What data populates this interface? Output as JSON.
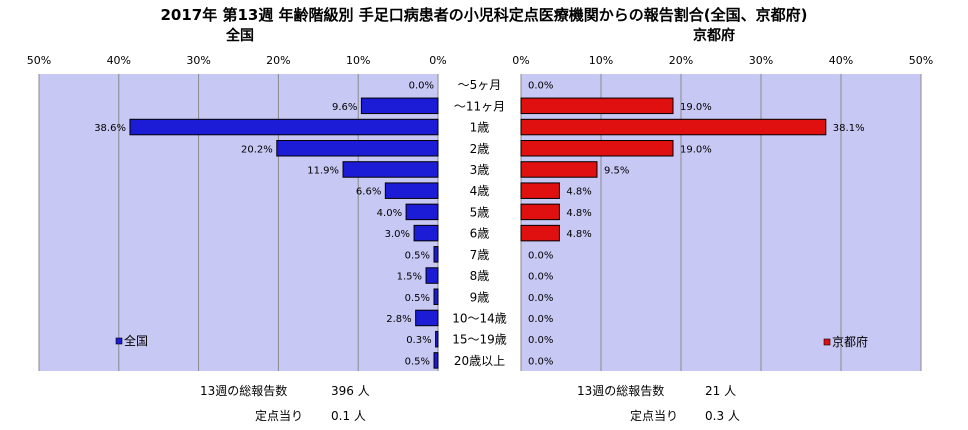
{
  "title": "2017年 第13週 年齢階級別 手足口病患者の小児科定点医療機関からの報告割合(全国、京都府)",
  "panels": {
    "left": {
      "title": "全国",
      "legend": "全国"
    },
    "right": {
      "title": "京都府",
      "legend": "京都府"
    }
  },
  "colors": {
    "left_bar": "#1c1cd6",
    "right_bar": "#e01010",
    "plot_bg": "#c8c8f4",
    "grid": "#8a8a8a"
  },
  "footer": {
    "left": {
      "total_label": "13週の総報告数",
      "total_value": "396 人",
      "per_label": "定点当り",
      "per_value": "0.1 人"
    },
    "right": {
      "total_label": "13週の総報告数",
      "total_value": "21 人",
      "per_label": "定点当り",
      "per_value": "0.3 人"
    }
  },
  "chart_data": {
    "type": "bar",
    "orientation": "horizontal",
    "title": "2017年 第13週 年齢階級別 手足口病患者の小児科定点医療機関からの報告割合(全国、京都府)",
    "categories": [
      "～5ヶ月",
      "～11ヶ月",
      "1歳",
      "2歳",
      "3歳",
      "4歳",
      "5歳",
      "6歳",
      "7歳",
      "8歳",
      "9歳",
      "10～14歳",
      "15～19歳",
      "20歳以上"
    ],
    "xlim": [
      0,
      50
    ],
    "ticks": [
      "50%",
      "40%",
      "30%",
      "20%",
      "10%",
      "0%"
    ],
    "ticks_right": [
      "0%",
      "10%",
      "20%",
      "30%",
      "40%",
      "50%"
    ],
    "grid": true,
    "series": [
      {
        "name": "全国",
        "values": [
          0.0,
          9.6,
          38.6,
          20.2,
          11.9,
          6.6,
          4.0,
          3.0,
          0.5,
          1.5,
          0.5,
          2.8,
          0.3,
          0.5
        ],
        "labels": [
          "0.0%",
          "9.6%",
          "38.6%",
          "20.2%",
          "11.9%",
          "6.6%",
          "4.0%",
          "3.0%",
          "0.5%",
          "1.5%",
          "0.5%",
          "2.8%",
          "0.3%",
          "0.5%"
        ]
      },
      {
        "name": "京都府",
        "values": [
          0.0,
          19.0,
          38.1,
          19.0,
          9.5,
          4.8,
          4.8,
          4.8,
          0.0,
          0.0,
          0.0,
          0.0,
          0.0,
          0.0
        ],
        "labels": [
          "0.0%",
          "19.0%",
          "38.1%",
          "19.0%",
          "9.5%",
          "4.8%",
          "4.8%",
          "4.8%",
          "0.0%",
          "0.0%",
          "0.0%",
          "0.0%",
          "0.0%",
          "0.0%"
        ]
      }
    ],
    "legend_position": "bottom-left / bottom-right"
  }
}
